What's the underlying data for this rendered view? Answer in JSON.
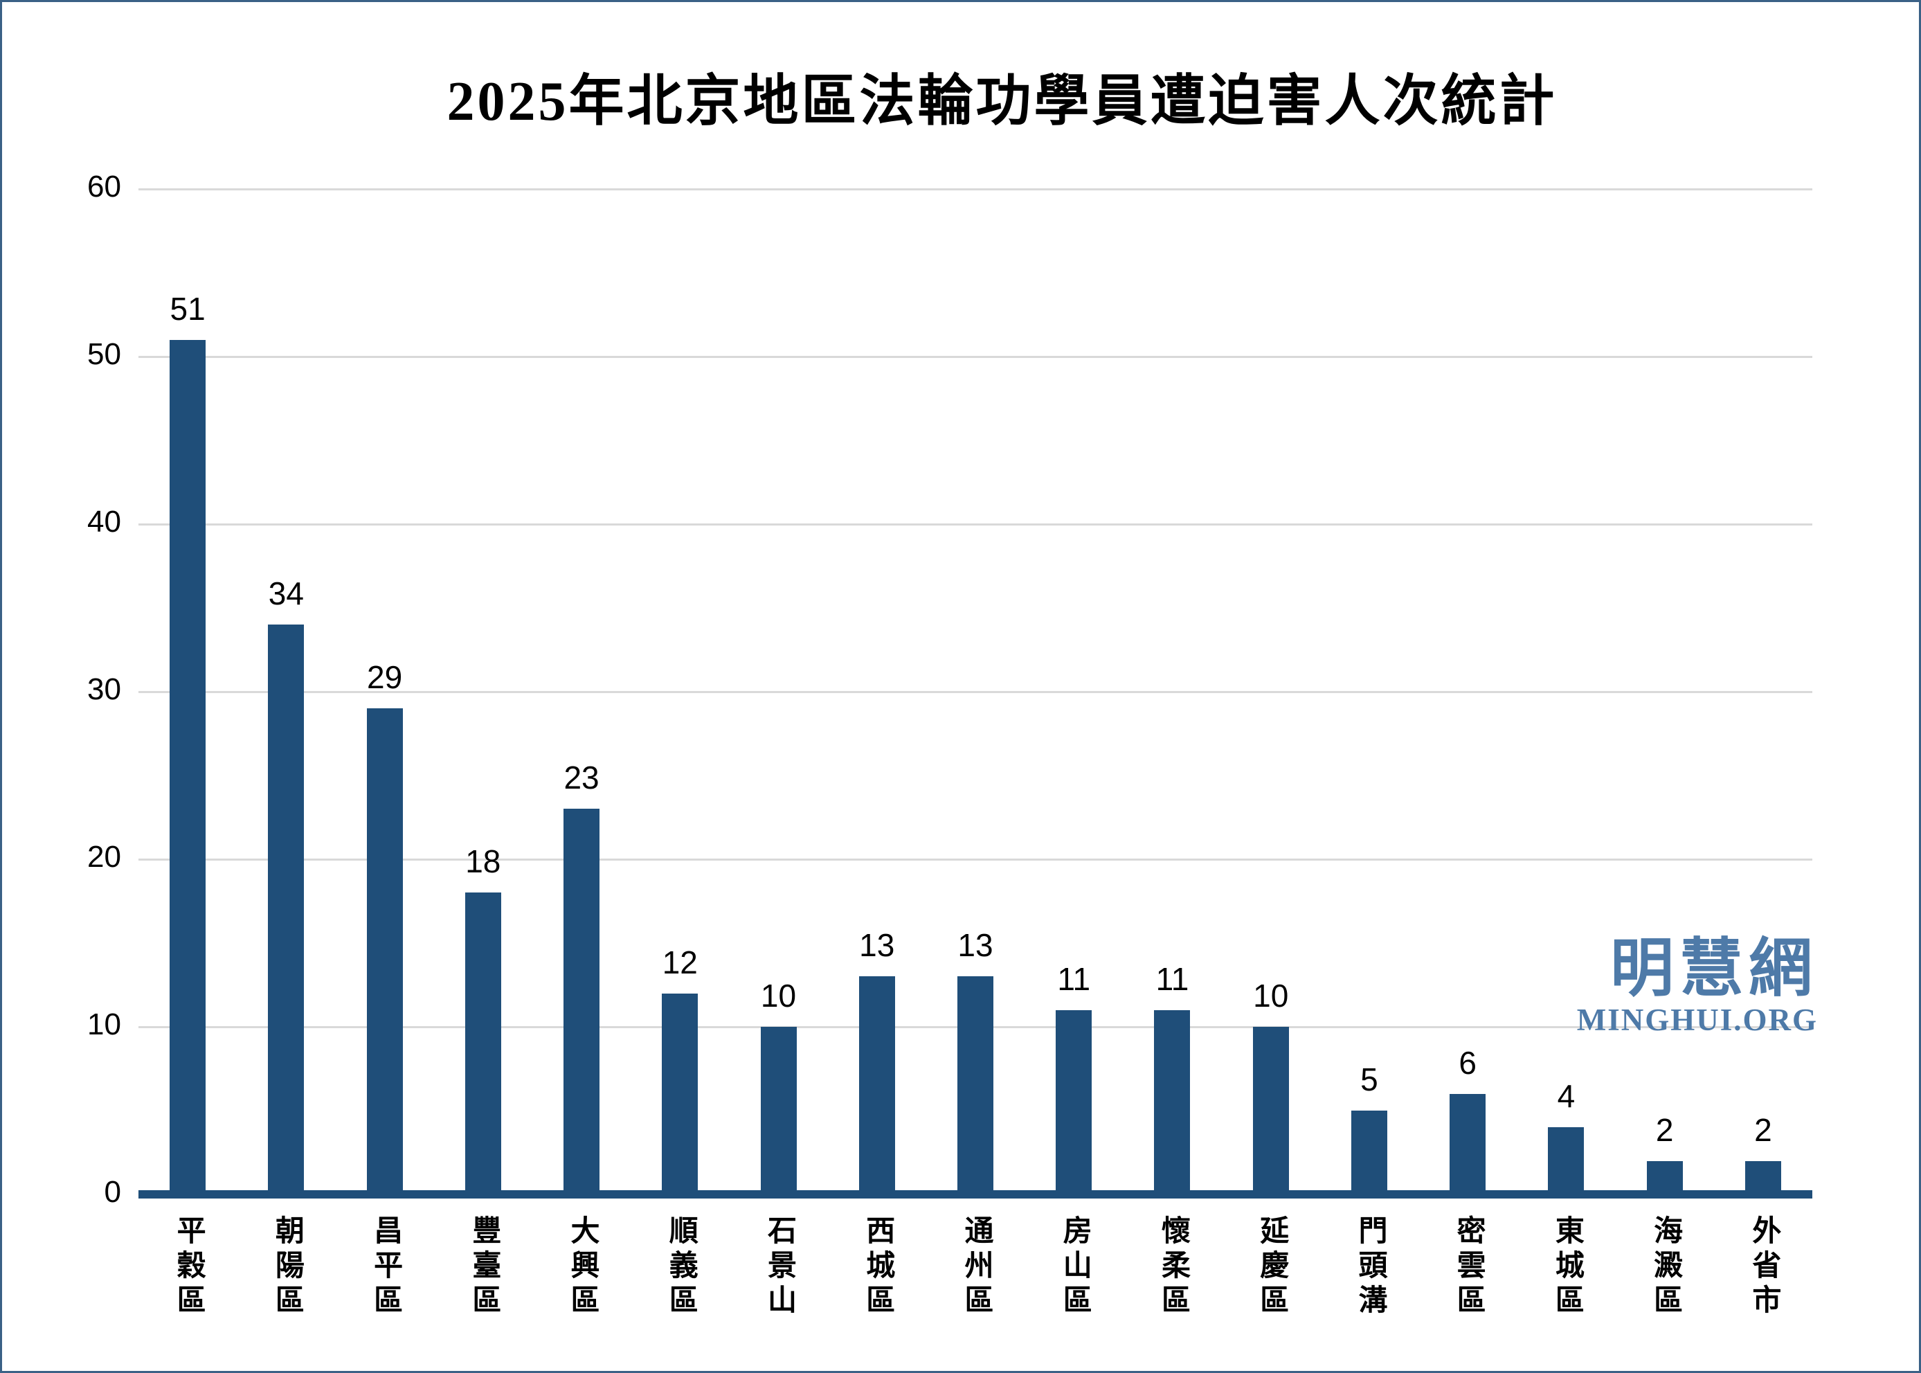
{
  "chart_data": {
    "type": "bar",
    "title": "2025年北京地區法輪功學員遭迫害人次統計",
    "categories": [
      "平穀區",
      "朝陽區",
      "昌平區",
      "豐臺區",
      "大興區",
      "順義區",
      "石景山",
      "西城區",
      "通州區",
      "房山區",
      "懷柔區",
      "延慶區",
      "門頭溝",
      "密雲區",
      "東城區",
      "海澱區",
      "外省市"
    ],
    "values": [
      51,
      34,
      29,
      18,
      23,
      12,
      10,
      13,
      13,
      11,
      11,
      10,
      5,
      6,
      4,
      2,
      2
    ],
    "xlabel": "",
    "ylabel": "",
    "ylim": [
      0,
      60
    ],
    "yticks": [
      0,
      10,
      20,
      30,
      40,
      50,
      60
    ],
    "grid": true,
    "legend": "none",
    "data_labels": true,
    "bar_color": "#1f4e79",
    "axis_line_color": "#1f4e79",
    "gridline_color": "#d9d9d9"
  },
  "watermark": {
    "cjk": "明慧網",
    "latin": "MINGHUI.ORG",
    "color": "#4e7aa8"
  },
  "frame": {
    "border_color": "#3a6186",
    "background_color": "#ffffff",
    "title_color": "#000000"
  }
}
